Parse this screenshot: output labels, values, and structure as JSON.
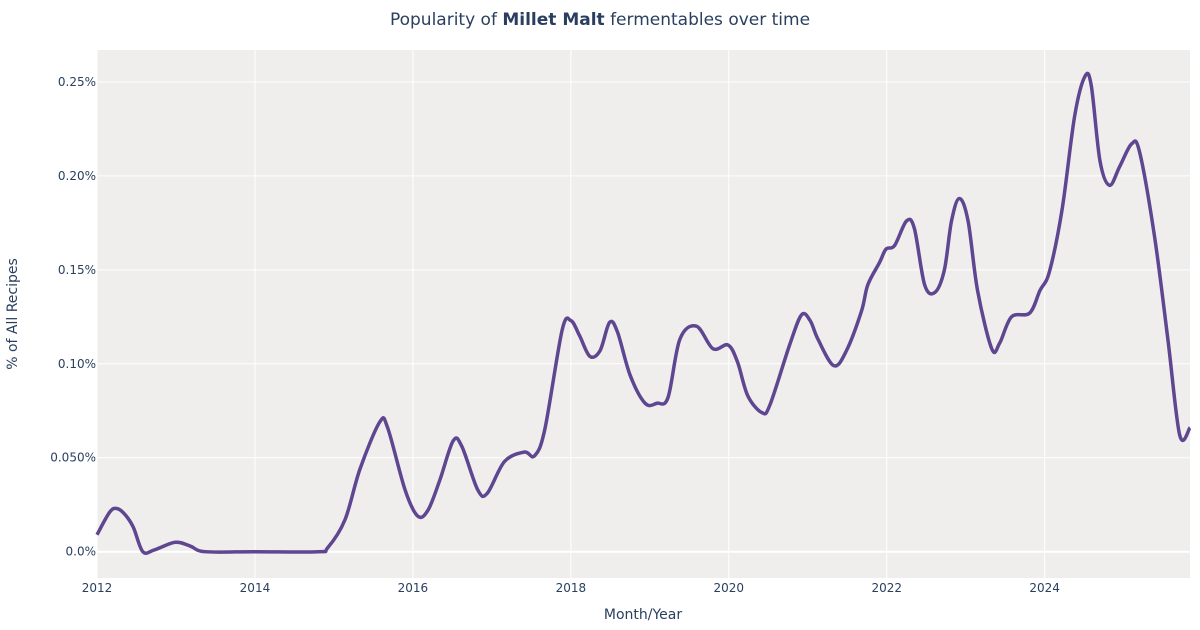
{
  "chart_data": {
    "type": "line",
    "title_prefix": "Popularity of ",
    "title_bold": "Millet Malt",
    "title_suffix": " fermentables over time",
    "xlabel": "Month/Year",
    "ylabel": "% of All Recipes",
    "xlim": [
      2012,
      2025.84
    ],
    "ylim": [
      -0.014,
      0.267
    ],
    "x_ticks": [
      2012,
      2014,
      2016,
      2018,
      2020,
      2022,
      2024
    ],
    "x_tick_labels": [
      "2012",
      "2014",
      "2016",
      "2018",
      "2020",
      "2022",
      "2024"
    ],
    "y_ticks": [
      0,
      0.05,
      0.1,
      0.15,
      0.2,
      0.25
    ],
    "y_tick_labels": [
      "0.0%",
      "0.050%",
      "0.10%",
      "0.15%",
      "0.20%",
      "0.25%"
    ],
    "grid": true,
    "line_color": "#5e4690",
    "plot_bg": "#efeeec",
    "series": [
      {
        "x": [
          2012.0,
          2012.16,
          2012.25,
          2012.35,
          2012.46,
          2012.58,
          2012.73,
          2012.99,
          2013.18,
          2013.37,
          2014.0,
          2014.8,
          2014.92,
          2015.14,
          2015.33,
          2015.58,
          2015.68,
          2015.9,
          2016.06,
          2016.19,
          2016.34,
          2016.51,
          2016.62,
          2016.82,
          2016.94,
          2017.16,
          2017.41,
          2017.54,
          2017.67,
          2017.89,
          2018.0,
          2018.11,
          2018.24,
          2018.37,
          2018.49,
          2018.59,
          2018.75,
          2018.94,
          2019.09,
          2019.23,
          2019.38,
          2019.59,
          2019.8,
          2019.99,
          2020.11,
          2020.24,
          2020.42,
          2020.52,
          2020.77,
          2020.92,
          2021.03,
          2021.13,
          2021.33,
          2021.49,
          2021.68,
          2021.76,
          2021.91,
          2021.99,
          2022.1,
          2022.25,
          2022.35,
          2022.48,
          2022.61,
          2022.73,
          2022.82,
          2022.92,
          2023.03,
          2023.15,
          2023.33,
          2023.43,
          2023.58,
          2023.81,
          2023.94,
          2024.06,
          2024.22,
          2024.38,
          2024.51,
          2024.59,
          2024.7,
          2024.82,
          2024.95,
          2025.1,
          2025.2,
          2025.39,
          2025.56,
          2025.71,
          2025.84
        ],
        "y": [
          0.009,
          0.021,
          0.023,
          0.02,
          0.013,
          0.0,
          0.001,
          0.005,
          0.003,
          0.0,
          0.0,
          0.0,
          0.002,
          0.017,
          0.044,
          0.069,
          0.066,
          0.033,
          0.019,
          0.022,
          0.038,
          0.059,
          0.056,
          0.033,
          0.031,
          0.048,
          0.053,
          0.051,
          0.065,
          0.118,
          0.123,
          0.115,
          0.104,
          0.107,
          0.122,
          0.117,
          0.094,
          0.079,
          0.079,
          0.082,
          0.113,
          0.12,
          0.108,
          0.11,
          0.101,
          0.083,
          0.074,
          0.078,
          0.11,
          0.126,
          0.123,
          0.113,
          0.099,
          0.107,
          0.128,
          0.142,
          0.154,
          0.161,
          0.163,
          0.176,
          0.172,
          0.142,
          0.138,
          0.15,
          0.176,
          0.188,
          0.176,
          0.139,
          0.108,
          0.111,
          0.125,
          0.127,
          0.139,
          0.149,
          0.182,
          0.232,
          0.253,
          0.248,
          0.208,
          0.195,
          0.205,
          0.217,
          0.213,
          0.168,
          0.113,
          0.062,
          0.066
        ]
      }
    ]
  }
}
